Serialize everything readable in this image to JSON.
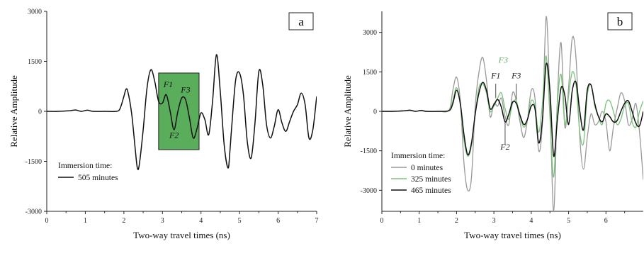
{
  "chart_data": [
    {
      "type": "line",
      "panel_label": "a",
      "xlabel": "Two-way travel times (ns)",
      "ylabel": "Relative Amplitude",
      "xlim": [
        0,
        7
      ],
      "ylim": [
        -3000,
        3000
      ],
      "x_ticks": [
        "0",
        "1",
        "2",
        "3",
        "4",
        "5",
        "6",
        "7"
      ],
      "y_ticks": [
        "3000",
        "1500",
        "0",
        "-1500",
        "-3000"
      ],
      "legend_title": "Immersion time:",
      "legend_position": "bottom-left",
      "highlight_box": {
        "x": [
          2.9,
          3.95
        ],
        "y": [
          -1150,
          1150
        ],
        "color": "#5aad5a"
      },
      "annotations": [
        {
          "text": "F1",
          "x": 3.15,
          "y": 720
        },
        {
          "text": "F3",
          "x": 3.6,
          "y": 560
        },
        {
          "text": "F2",
          "x": 3.3,
          "y": -800
        }
      ],
      "series": [
        {
          "name": "505 minutes",
          "color": "#111111",
          "x": [
            0,
            0.3,
            0.6,
            0.75,
            0.9,
            1.05,
            1.2,
            1.5,
            1.8,
            1.9,
            2.0,
            2.05,
            2.1,
            2.2,
            2.3,
            2.35,
            2.4,
            2.5,
            2.6,
            2.7,
            2.8,
            2.9,
            3.0,
            3.1,
            3.2,
            3.3,
            3.4,
            3.5,
            3.6,
            3.7,
            3.8,
            3.9,
            4.0,
            4.1,
            4.2,
            4.3,
            4.4,
            4.5,
            4.6,
            4.7,
            4.75,
            4.8,
            4.9,
            5.0,
            5.1,
            5.2,
            5.3,
            5.4,
            5.5,
            5.6,
            5.7,
            5.8,
            5.9,
            6.0,
            6.1,
            6.2,
            6.3,
            6.4,
            6.5,
            6.6,
            6.7,
            6.8,
            6.9,
            7.0
          ],
          "y": [
            0,
            0,
            20,
            40,
            0,
            35,
            0,
            0,
            0,
            80,
            450,
            650,
            600,
            -50,
            -1200,
            -1700,
            -1600,
            -550,
            700,
            1250,
            900,
            300,
            250,
            500,
            0,
            -550,
            0,
            400,
            350,
            -200,
            -800,
            -500,
            -50,
            -250,
            -700,
            300,
            1700,
            600,
            -1000,
            -1700,
            -1200,
            -400,
            950,
            1150,
            500,
            -900,
            -1400,
            -350,
            1200,
            800,
            -400,
            -800,
            -450,
            50,
            -350,
            -600,
            -300,
            0,
            200,
            550,
            200,
            -800,
            -550,
            450
          ]
        }
      ]
    },
    {
      "type": "line",
      "panel_label": "b",
      "xlabel": "Two-way travel times (ns)",
      "ylabel": "Relative Amplitude",
      "xlim": [
        0,
        7
      ],
      "ylim": [
        -3800,
        3800
      ],
      "x_ticks": [
        "0",
        "1",
        "2",
        "3",
        "4",
        "5",
        "6"
      ],
      "y_ticks": [
        "3000",
        "1500",
        "0",
        "-1500",
        "-3000"
      ],
      "legend_title": "Immersion time:",
      "legend_position": "bottom-left",
      "annotations": [
        {
          "text": "F3",
          "x": 3.25,
          "y": 1850,
          "color": "#6aaa6a"
        },
        {
          "text": "F1",
          "x": 3.05,
          "y": 1250,
          "color": "#222222"
        },
        {
          "text": "F3",
          "x": 3.6,
          "y": 1250,
          "color": "#222222"
        },
        {
          "text": "F2",
          "x": 3.3,
          "y": -1450,
          "color": "#222222"
        }
      ],
      "series": [
        {
          "name": "0 minutes",
          "color": "#999999",
          "x": [
            0,
            0.3,
            0.6,
            0.75,
            0.9,
            1.05,
            1.2,
            1.5,
            1.8,
            1.9,
            2.0,
            2.1,
            2.2,
            2.3,
            2.4,
            2.5,
            2.6,
            2.7,
            2.8,
            2.9,
            3.0,
            3.1,
            3.2,
            3.3,
            3.4,
            3.5,
            3.6,
            3.7,
            3.8,
            3.9,
            4.0,
            4.1,
            4.2,
            4.3,
            4.4,
            4.5,
            4.6,
            4.7,
            4.8,
            4.9,
            5.0,
            5.1,
            5.2,
            5.3,
            5.4,
            5.5,
            5.6,
            5.7,
            5.8,
            5.9,
            6.0,
            6.1,
            6.2,
            6.3,
            6.4,
            6.5,
            6.6,
            6.7,
            6.8,
            6.9,
            7.0
          ],
          "y": [
            0,
            0,
            25,
            50,
            0,
            40,
            0,
            0,
            50,
            800,
            1300,
            400,
            -2000,
            -3000,
            -2500,
            200,
            1500,
            2050,
            1200,
            -200,
            300,
            200,
            500,
            -200,
            -500,
            700,
            400,
            -400,
            -1000,
            -300,
            800,
            500,
            -1500,
            -400,
            3600,
            400,
            -3800,
            500,
            2600,
            -600,
            900,
            2800,
            2000,
            -1000,
            -2200,
            -1000,
            -100,
            -500,
            -400,
            0,
            -400,
            -1500,
            -600,
            100,
            700,
            400,
            -500,
            -300,
            300,
            -800,
            -2600
          ]
        },
        {
          "name": "325 minutes",
          "color": "#7ac27a",
          "x": [
            0,
            0.3,
            0.6,
            0.75,
            0.9,
            1.05,
            1.2,
            1.5,
            1.8,
            1.9,
            2.0,
            2.1,
            2.2,
            2.3,
            2.4,
            2.5,
            2.6,
            2.7,
            2.8,
            2.9,
            3.0,
            3.1,
            3.2,
            3.3,
            3.4,
            3.5,
            3.6,
            3.7,
            3.8,
            3.9,
            4.0,
            4.1,
            4.2,
            4.3,
            4.4,
            4.5,
            4.6,
            4.7,
            4.8,
            4.9,
            5.0,
            5.1,
            5.2,
            5.3,
            5.4,
            5.5,
            5.6,
            5.7,
            5.8,
            5.9,
            6.0,
            6.1,
            6.2,
            6.3,
            6.4,
            6.5,
            6.6,
            6.7,
            6.8,
            6.9,
            7.0
          ],
          "y": [
            0,
            0,
            20,
            40,
            0,
            30,
            0,
            0,
            30,
            400,
            900,
            250,
            -1100,
            -1700,
            -1300,
            -100,
            900,
            1050,
            700,
            0,
            200,
            500,
            700,
            100,
            -300,
            300,
            400,
            -200,
            -600,
            -300,
            400,
            200,
            -800,
            300,
            2100,
            -200,
            -2500,
            300,
            1400,
            -500,
            600,
            1500,
            1000,
            -800,
            -1200,
            600,
            1000,
            200,
            -200,
            -500,
            300,
            400,
            0,
            -500,
            -300,
            200,
            300,
            -400,
            -600,
            0,
            400
          ]
        },
        {
          "name": "465 minutes",
          "color": "#111111",
          "x": [
            0,
            0.3,
            0.6,
            0.75,
            0.9,
            1.05,
            1.2,
            1.5,
            1.8,
            1.9,
            2.0,
            2.1,
            2.2,
            2.3,
            2.4,
            2.5,
            2.6,
            2.7,
            2.8,
            2.9,
            3.0,
            3.1,
            3.2,
            3.3,
            3.4,
            3.5,
            3.6,
            3.7,
            3.8,
            3.9,
            4.0,
            4.1,
            4.2,
            4.3,
            4.4,
            4.5,
            4.6,
            4.7,
            4.8,
            4.9,
            5.0,
            5.1,
            5.2,
            5.3,
            5.4,
            5.5,
            5.6,
            5.7,
            5.8,
            5.9,
            6.0,
            6.1,
            6.2,
            6.3,
            6.4,
            6.5,
            6.6,
            6.7,
            6.8,
            6.9,
            7.0
          ],
          "y": [
            0,
            0,
            20,
            40,
            0,
            30,
            0,
            0,
            30,
            300,
            800,
            300,
            -900,
            -1650,
            -1200,
            -100,
            700,
            1100,
            800,
            100,
            250,
            450,
            150,
            -400,
            -100,
            350,
            300,
            -150,
            -500,
            -300,
            200,
            100,
            -1200,
            -300,
            1800,
            800,
            -1700,
            -300,
            900,
            600,
            -500,
            800,
            1100,
            0,
            -700,
            800,
            1000,
            300,
            -200,
            -400,
            -100,
            -200,
            -400,
            -350,
            0,
            300,
            400,
            0,
            -450,
            -550,
            0
          ]
        }
      ]
    }
  ]
}
